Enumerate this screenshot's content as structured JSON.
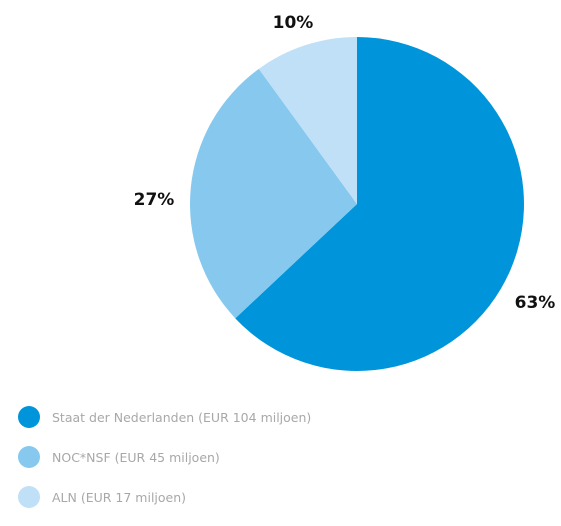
{
  "chart_data": {
    "type": "pie",
    "title": "",
    "categories": [
      "Staat der Nederlanden (EUR 104 miljoen)",
      "NOC*NSF (EUR 45 miljoen)",
      "ALN (EUR 17 miljoen)"
    ],
    "values": [
      63,
      27,
      10
    ],
    "data_labels": [
      "63%",
      "27%",
      "10%"
    ],
    "colors": [
      "#0095da",
      "#87c8ef",
      "#bfe0f7"
    ],
    "legend_position": "bottom-left"
  }
}
